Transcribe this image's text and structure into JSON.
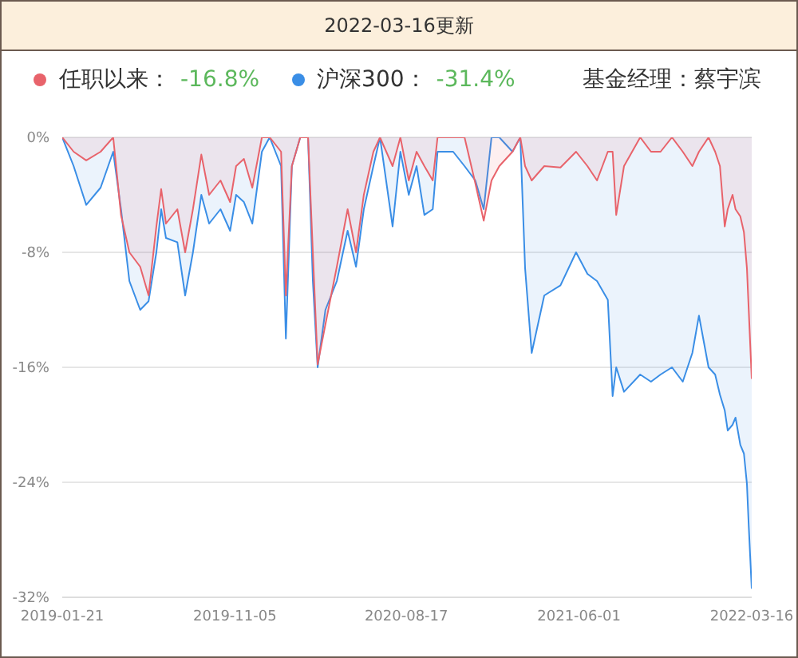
{
  "chart_data": {
    "type": "area",
    "title": "2022-03-16更新",
    "annotations": [
      "-16.8%",
      "-31.4%",
      "基金经理：蔡宇滨"
    ],
    "x": [
      "2019-01-21",
      "2019-02-09",
      "2019-03-02",
      "2019-03-26",
      "2019-04-16",
      "2019-04-29",
      "2019-05-13",
      "2019-05-31",
      "2019-06-14",
      "2019-06-27",
      "2019-07-05",
      "2019-07-13",
      "2019-08-01",
      "2019-08-14",
      "2019-08-27",
      "2019-09-10",
      "2019-09-23",
      "2019-10-12",
      "2019-10-28",
      "2019-11-07",
      "2019-11-20",
      "2019-12-04",
      "2019-12-20",
      "2020-01-02",
      "2020-01-21",
      "2020-01-29",
      "2020-02-08",
      "2020-02-22",
      "2020-03-06",
      "2020-03-14",
      "2020-03-22",
      "2020-04-04",
      "2020-04-23",
      "2020-05-11",
      "2020-05-25",
      "2020-06-07",
      "2020-06-23",
      "2020-07-04",
      "2020-07-25",
      "2020-08-07",
      "2020-08-21",
      "2020-09-03",
      "2020-09-16",
      "2020-09-30",
      "2020-10-08",
      "2020-11-03",
      "2020-11-22",
      "2020-12-10",
      "2020-12-24",
      "2021-01-06",
      "2021-01-19",
      "2021-02-10",
      "2021-02-23",
      "2021-03-03",
      "2021-03-14",
      "2021-04-04",
      "2021-05-01",
      "2021-05-27",
      "2021-06-15",
      "2021-07-01",
      "2021-07-19",
      "2021-07-27",
      "2021-08-02",
      "2021-08-15",
      "2021-09-11",
      "2021-09-29",
      "2021-10-15",
      "2021-11-03",
      "2021-11-21",
      "2021-12-07",
      "2021-12-18",
      "2022-01-03",
      "2022-01-14",
      "2022-01-22",
      "2022-01-30",
      "2022-02-04",
      "2022-02-12",
      "2022-02-17",
      "2022-02-25",
      "2022-03-03",
      "2022-03-08",
      "2022-03-11",
      "2022-03-16"
    ],
    "series": [
      {
        "name": "任职以来：",
        "color": "#e8636b",
        "values": [
          0,
          -1,
          -1.6,
          -1,
          0,
          -5.4,
          -8,
          -9,
          -11,
          -6.2,
          -3.6,
          -6,
          -5,
          -8,
          -5,
          -1.2,
          -4,
          -3,
          -4.5,
          -2,
          -1.5,
          -3.5,
          0,
          0,
          -1,
          -11,
          -2,
          0,
          0,
          -8,
          -15.8,
          -13,
          -9,
          -5,
          -8,
          -4,
          -1,
          0,
          -2,
          0,
          -3,
          -1,
          -2,
          -3,
          0,
          0,
          0,
          -3.2,
          -5.8,
          -3,
          -2,
          -1,
          0,
          -2,
          -3,
          -2,
          -2.1,
          -1,
          -2,
          -3,
          -1,
          -1,
          -5.4,
          -2,
          0,
          -1,
          -1,
          0,
          -1,
          -2,
          -1,
          0,
          -1,
          -2,
          -6.2,
          -5,
          -4,
          -5,
          -5.5,
          -6.6,
          -9.1,
          -12,
          -16.8
        ]
      },
      {
        "name": "沪深300：",
        "color": "#3a8ee6",
        "values": [
          0,
          -2,
          -4.7,
          -3.5,
          -1,
          -5,
          -10,
          -12,
          -11.4,
          -8,
          -5,
          -7,
          -7.3,
          -11,
          -8,
          -4,
          -6,
          -5,
          -6.5,
          -4,
          -4.5,
          -6,
          -1,
          0,
          -2,
          -14,
          -2,
          0,
          0,
          -10,
          -16,
          -12,
          -10,
          -6.5,
          -9,
          -5,
          -2,
          0,
          -6.2,
          -1,
          -4,
          -2,
          -5.4,
          -5,
          -1,
          -1,
          -2,
          -3,
          -5,
          0,
          0,
          -1,
          0,
          -9.1,
          -15,
          -11,
          -10.3,
          -8,
          -9.5,
          -10,
          -11.3,
          -18,
          -16,
          -17.7,
          -16.5,
          -17,
          -16.5,
          -16,
          -17,
          -15,
          -12.4,
          -16,
          -16.5,
          -17.9,
          -19,
          -20.4,
          -20,
          -19.5,
          -21.4,
          -22,
          -24.1,
          -27,
          -31.4
        ]
      }
    ],
    "xlim": [
      "2019-01-21",
      "2022-03-16"
    ],
    "xticks": [
      "2019-01-21",
      "2019-11-05",
      "2020-08-17",
      "2021-06-01",
      "2022-03-16"
    ],
    "ylim": [
      -32,
      0
    ],
    "yticks": [
      {
        "value": -32,
        "label": "-32%"
      },
      {
        "value": -24,
        "label": "-24%"
      },
      {
        "value": -16,
        "label": "-16%"
      },
      {
        "value": -8,
        "label": "-8%"
      },
      {
        "value": 0,
        "label": "0%"
      }
    ],
    "grid": "y",
    "legend": "top"
  }
}
